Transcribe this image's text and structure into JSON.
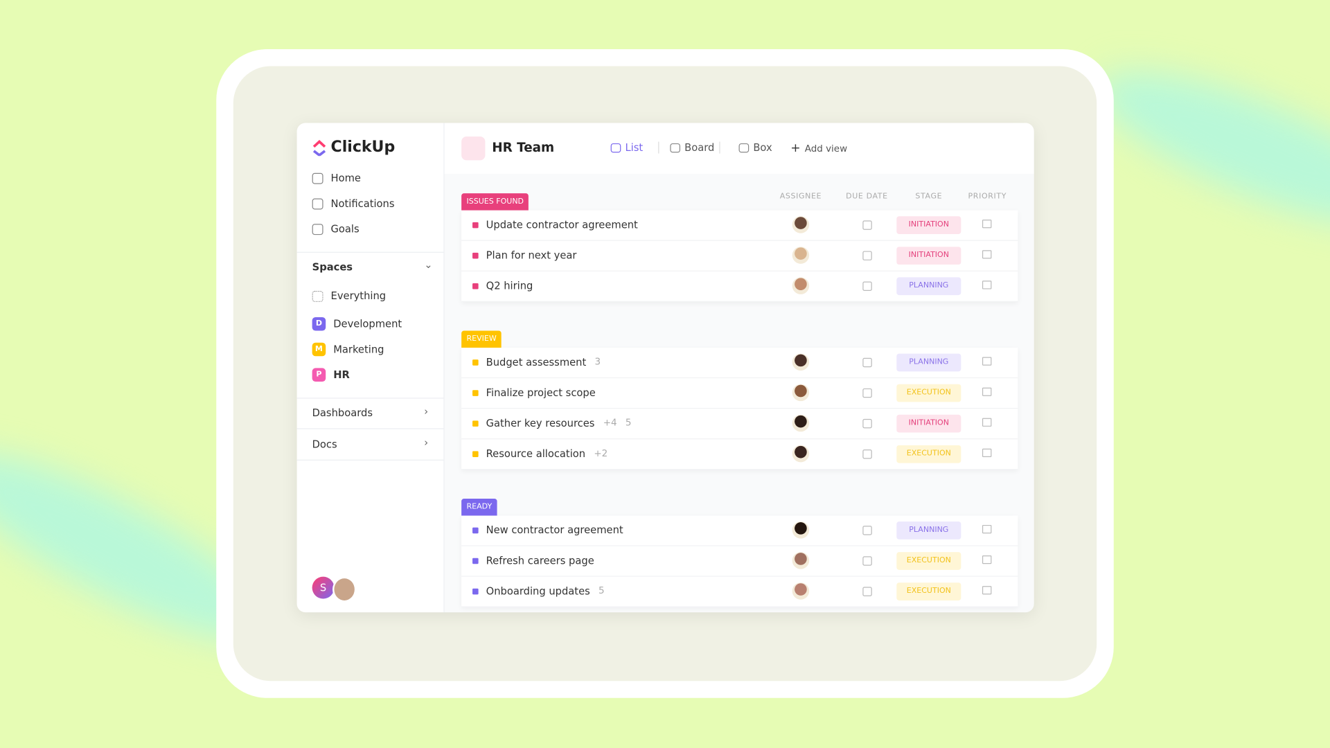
{
  "sidebar": {
    "logo": "ClickUp",
    "nav": [
      "Home",
      "Notifications",
      "Goals"
    ],
    "spaces_title": "Spaces",
    "spaces": [
      {
        "badge": null,
        "name": "Everything"
      },
      {
        "badge": "D",
        "name": "Development",
        "color": "#7b68ee"
      },
      {
        "badge": "M",
        "name": "Marketing",
        "color": "#ffc300"
      },
      {
        "badge": "P",
        "name": "HR",
        "color": "#f45bb0"
      }
    ],
    "sections": [
      "Dashboards",
      "Docs"
    ],
    "user_initial": "S"
  },
  "header": {
    "title": "HR Team",
    "views": [
      "List",
      "Board",
      "Box"
    ],
    "add_view": "Add view"
  },
  "columns": [
    "ASSIGNEE",
    "DUE DATE",
    "STAGE",
    "PRIORITY"
  ],
  "groups": [
    {
      "label": "ISSUES FOUND",
      "color": "#e8407c",
      "tasks": [
        {
          "name": "Update contractor agreement",
          "extras": [],
          "stage": "INITIATION"
        },
        {
          "name": "Plan for next year",
          "extras": [],
          "stage": "INITIATION"
        },
        {
          "name": "Q2 hiring",
          "extras": [],
          "stage": "PLANNING"
        }
      ]
    },
    {
      "label": "REVIEW",
      "color": "#ffc300",
      "tasks": [
        {
          "name": "Budget assessment",
          "extras": [
            "3"
          ],
          "stage": "PLANNING"
        },
        {
          "name": "Finalize project scope",
          "extras": [],
          "stage": "EXECUTION"
        },
        {
          "name": "Gather key resources",
          "extras": [
            "+4",
            "5"
          ],
          "stage": "INITIATION"
        },
        {
          "name": "Resource allocation",
          "extras": [
            "+2"
          ],
          "stage": "EXECUTION"
        }
      ]
    },
    {
      "label": "READY",
      "color": "#7b68ee",
      "tasks": [
        {
          "name": "New contractor agreement",
          "extras": [],
          "stage": "PLANNING"
        },
        {
          "name": "Refresh careers page",
          "extras": [],
          "stage": "EXECUTION"
        },
        {
          "name": "Onboarding updates",
          "extras": [
            "5"
          ],
          "stage": "EXECUTION"
        }
      ]
    }
  ]
}
